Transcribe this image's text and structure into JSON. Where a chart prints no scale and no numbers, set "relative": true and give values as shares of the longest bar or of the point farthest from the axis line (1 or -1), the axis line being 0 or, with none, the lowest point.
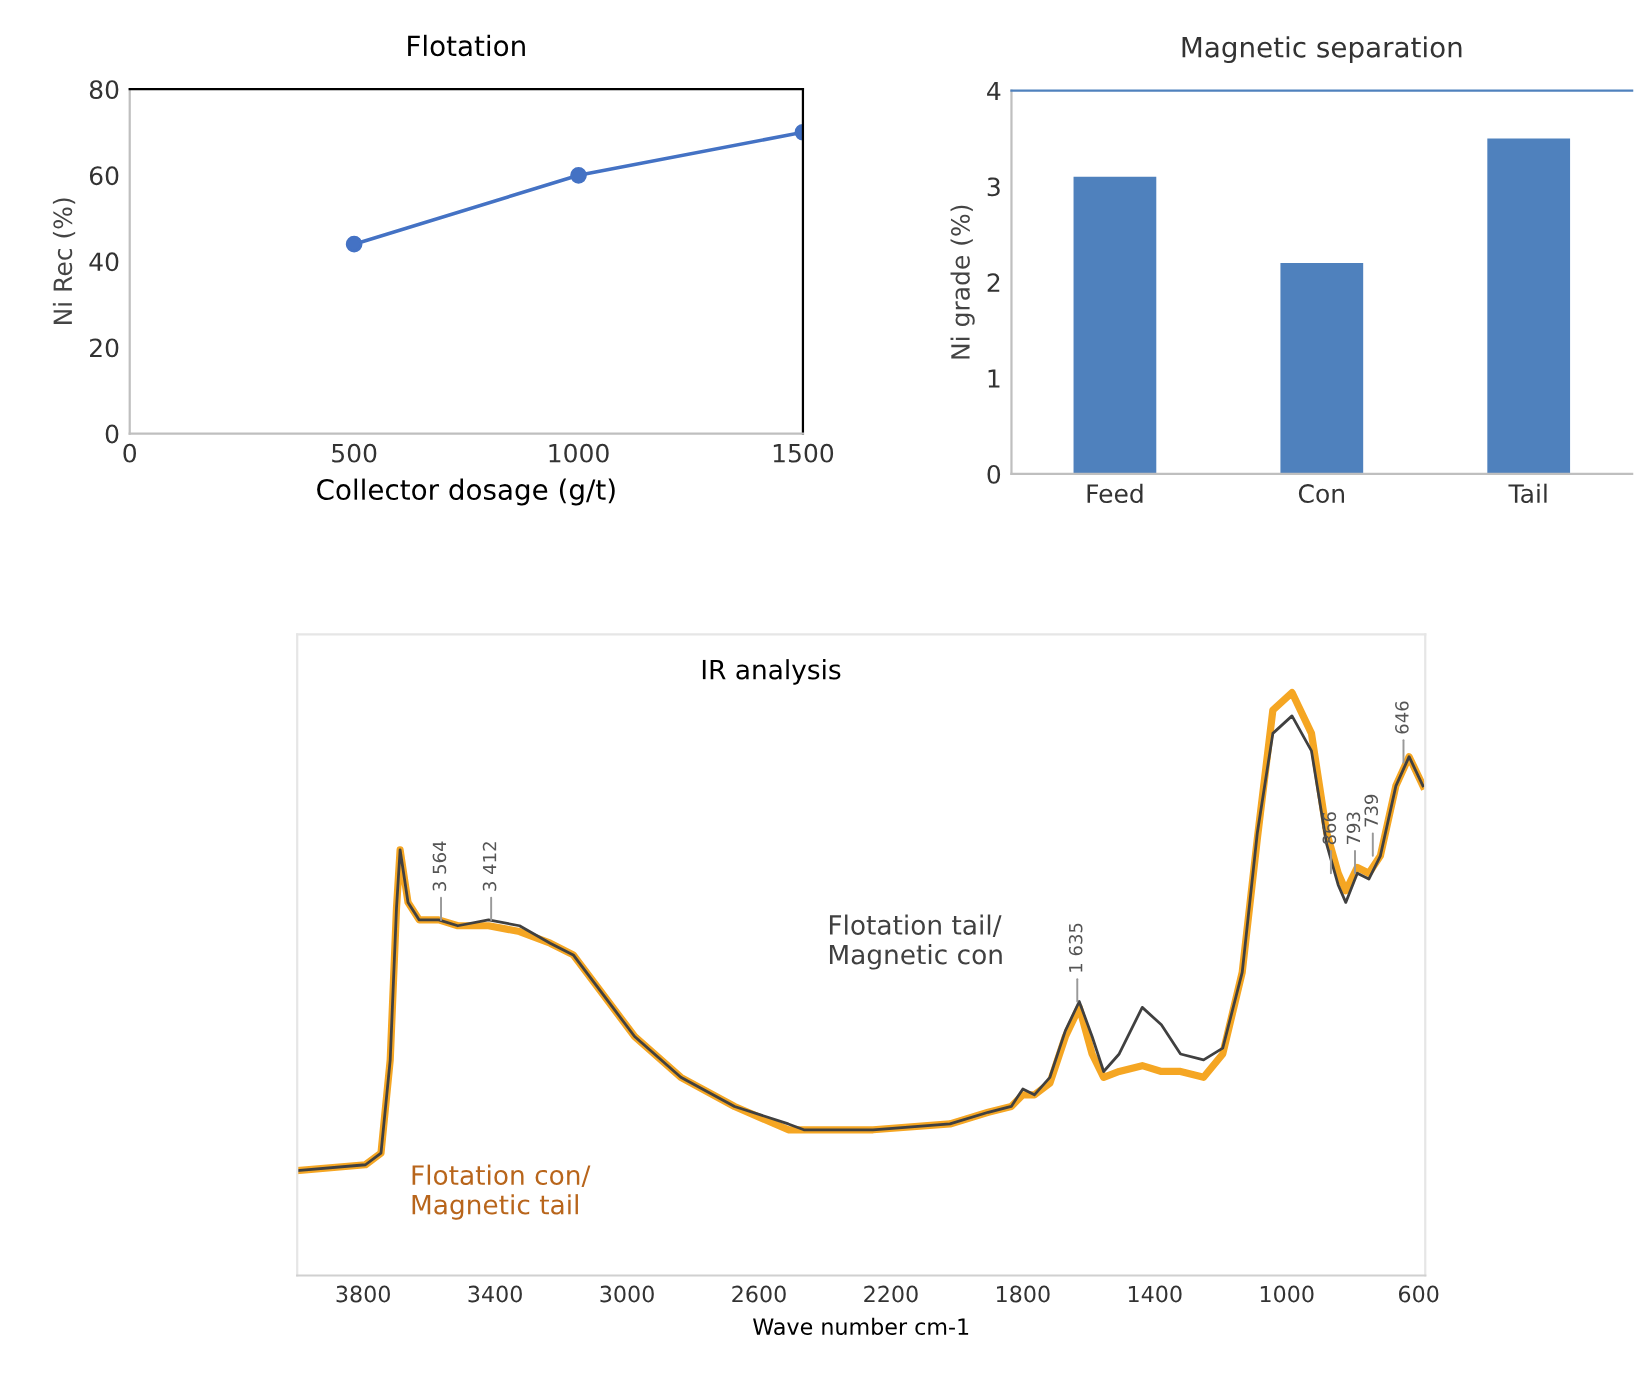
{
  "chart_data": [
    {
      "type": "line",
      "title": "Flotation",
      "xlabel": "Collector dosage (g/t)",
      "ylabel": "Ni Rec (%)",
      "x": [
        500,
        1000,
        1500
      ],
      "values": [
        44,
        60,
        70
      ],
      "color": "#4472c4",
      "marker": "circle",
      "xlim": [
        0,
        1500
      ],
      "xticks": [
        0,
        500,
        1000,
        1500
      ],
      "ylim": [
        0,
        80
      ],
      "yticks": [
        0,
        20,
        40,
        60,
        80
      ],
      "grid": false
    },
    {
      "type": "bar",
      "title": "Magnetic separation",
      "ylabel": "Ni grade (%)",
      "categories": [
        "Feed",
        "Con",
        "Tail"
      ],
      "values": [
        3.1,
        2.2,
        3.5
      ],
      "color": "#4f81bd",
      "ylim": [
        0,
        4
      ],
      "yticks": [
        0,
        1,
        2,
        3,
        4
      ],
      "grid": false
    },
    {
      "type": "line",
      "title": "IR analysis",
      "xlabel": "Wave number cm-1",
      "relative": true,
      "tick_labels": "x",
      "grid": false,
      "xlim": [
        4000,
        580
      ],
      "xticks": [
        3800,
        3400,
        3000,
        2600,
        2200,
        1800,
        1400,
        1000,
        600
      ],
      "series": [
        {
          "name": "Flotation tail/\nMagnetic con",
          "color": "#404040",
          "x": [
            4000,
            3793,
            3746,
            3718,
            3699,
            3688,
            3664,
            3630,
            3571,
            3513,
            3420,
            3326,
            3233,
            3163,
            3070,
            2977,
            2837,
            2674,
            2511,
            2464,
            2417,
            2254,
            2021,
            1905,
            1835,
            1800,
            1765,
            1718,
            1671,
            1629,
            1590,
            1555,
            1508,
            1438,
            1380,
            1322,
            1252,
            1194,
            1135,
            1089,
            1042,
            984,
            925,
            879,
            844,
            821,
            786,
            751,
            716,
            669,
            629,
            587
          ],
          "values": [
            0.18,
            0.19,
            0.21,
            0.37,
            0.63,
            0.73,
            0.64,
            0.61,
            0.61,
            0.6,
            0.61,
            0.6,
            0.57,
            0.55,
            0.48,
            0.41,
            0.34,
            0.29,
            0.26,
            0.25,
            0.25,
            0.25,
            0.26,
            0.28,
            0.29,
            0.32,
            0.31,
            0.34,
            0.42,
            0.47,
            0.41,
            0.35,
            0.38,
            0.46,
            0.43,
            0.38,
            0.37,
            0.39,
            0.52,
            0.76,
            0.93,
            0.96,
            0.9,
            0.74,
            0.67,
            0.64,
            0.69,
            0.68,
            0.72,
            0.84,
            0.89,
            0.84
          ]
        },
        {
          "name": "Flotation con/\nMagnetic tail",
          "color": "#f5a623",
          "x": [
            4000,
            3793,
            3746,
            3718,
            3699,
            3688,
            3664,
            3630,
            3571,
            3513,
            3420,
            3326,
            3233,
            3163,
            3070,
            2977,
            2837,
            2674,
            2511,
            2464,
            2417,
            2254,
            2021,
            1905,
            1835,
            1800,
            1765,
            1718,
            1671,
            1629,
            1590,
            1555,
            1508,
            1438,
            1380,
            1322,
            1252,
            1194,
            1135,
            1089,
            1042,
            984,
            925,
            879,
            844,
            821,
            786,
            751,
            716,
            669,
            629,
            587
          ],
          "values": [
            0.18,
            0.19,
            0.21,
            0.37,
            0.63,
            0.73,
            0.64,
            0.61,
            0.61,
            0.6,
            0.6,
            0.59,
            0.57,
            0.55,
            0.48,
            0.41,
            0.34,
            0.29,
            0.25,
            0.25,
            0.25,
            0.25,
            0.26,
            0.28,
            0.29,
            0.31,
            0.31,
            0.33,
            0.41,
            0.46,
            0.38,
            0.34,
            0.35,
            0.36,
            0.35,
            0.35,
            0.34,
            0.38,
            0.52,
            0.75,
            0.97,
            1.0,
            0.93,
            0.76,
            0.69,
            0.66,
            0.7,
            0.69,
            0.72,
            0.84,
            0.89,
            0.84
          ]
        }
      ],
      "annotations": [
        {
          "text": "3 564",
          "x": 3564,
          "y": 0.61
        },
        {
          "text": "3 412",
          "x": 3412,
          "y": 0.61
        },
        {
          "text": "1 635",
          "x": 1635,
          "y": 0.47
        },
        {
          "text": "866",
          "x": 866,
          "y": 0.69
        },
        {
          "text": "793",
          "x": 793,
          "y": 0.69
        },
        {
          "text": "739",
          "x": 739,
          "y": 0.72
        },
        {
          "text": "646",
          "x": 646,
          "y": 0.88
        }
      ]
    }
  ]
}
